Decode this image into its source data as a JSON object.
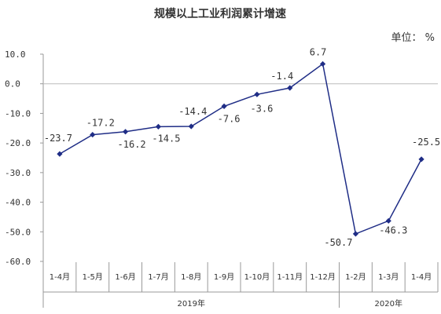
{
  "chart_data": {
    "type": "line",
    "title": "规模以上工业利润累计增速",
    "unit_label": "单位： %",
    "categories": [
      "1-4月",
      "1-5月",
      "1-6月",
      "1-7月",
      "1-8月",
      "1-9月",
      "1-10月",
      "1-11月",
      "1-12月",
      "1-2月",
      "1-3月",
      "1-4月"
    ],
    "values": [
      -23.7,
      -17.2,
      -16.2,
      -14.5,
      -14.4,
      -7.6,
      -3.6,
      -1.4,
      6.7,
      -50.7,
      -46.3,
      -25.5
    ],
    "data_labels": [
      "-23.7",
      "-17.2",
      "-16.2",
      "-14.5",
      "-14.4",
      "-7.6",
      "-3.6",
      "-1.4",
      "6.7",
      "-50.7",
      "-46.3",
      "-25.5"
    ],
    "ylim": [
      -60,
      10
    ],
    "yticks": [
      "10.0",
      "0.0",
      "-10.0",
      "-20.0",
      "-30.0",
      "-40.0",
      "-50.0",
      "-60.0"
    ],
    "groups": [
      {
        "label": "2019年",
        "count": 9
      },
      {
        "label": "2020年",
        "count": 3
      }
    ],
    "line_color": "#1f2d86",
    "marker": "diamond",
    "grid": false
  }
}
